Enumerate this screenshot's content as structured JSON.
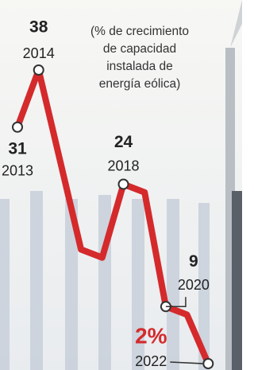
{
  "chart_data": {
    "type": "line",
    "annotation": [
      "(% de crecimiento",
      "de capacidad",
      "instalada de",
      "energía eólica)"
    ],
    "categories": [
      "2013",
      "2014",
      null,
      null,
      null,
      "2018",
      null,
      "2020",
      null,
      "2022"
    ],
    "series": [
      {
        "color": "#d42a2c",
        "values": [
          31,
          38,
          27,
          16,
          15,
          24,
          23,
          9,
          8,
          2
        ],
        "value_labels": [
          "31",
          "38",
          null,
          null,
          null,
          "24",
          null,
          "9",
          null,
          "2%"
        ]
      }
    ],
    "ylim": [
      2,
      38
    ]
  }
}
